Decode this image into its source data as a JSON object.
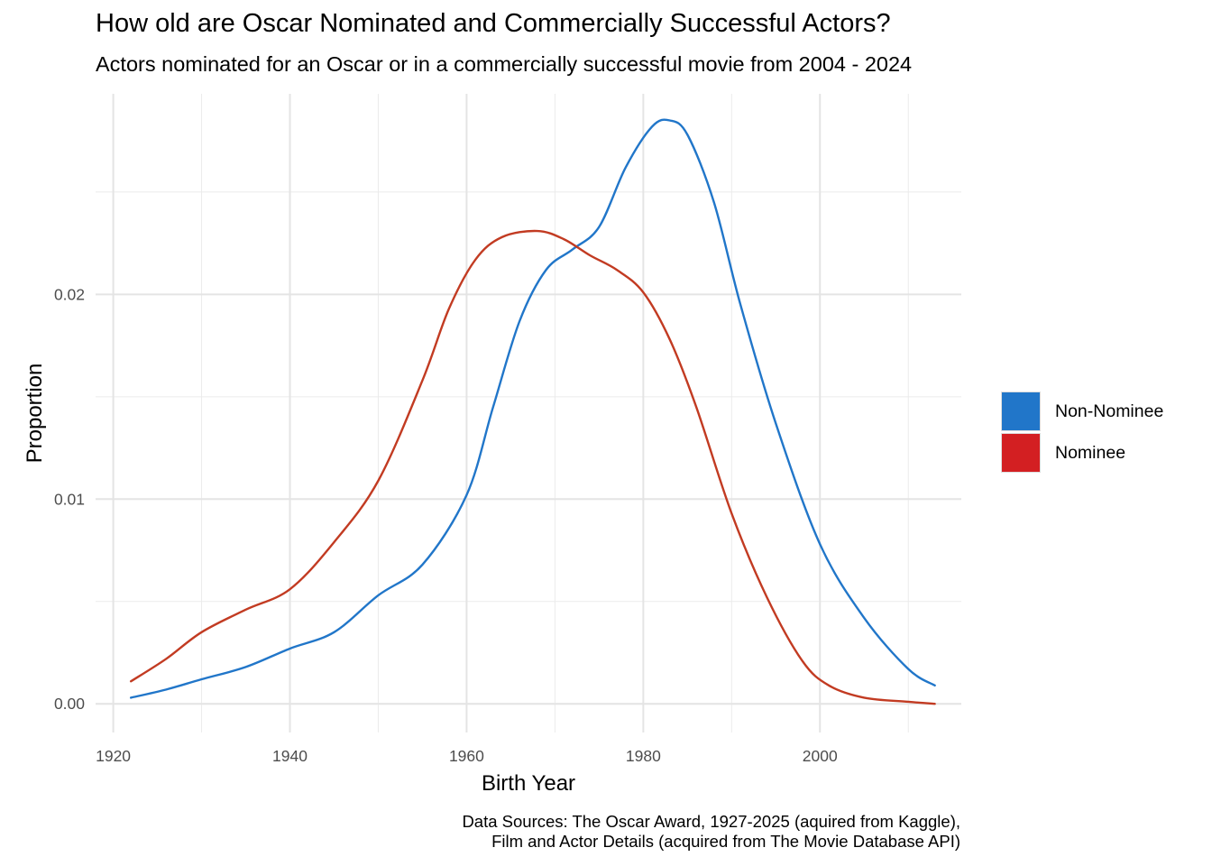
{
  "chart_data": {
    "type": "line",
    "title": "How old are Oscar Nominated and Commercially Successful Actors?",
    "subtitle": "Actors nominated for an Oscar or in a commercially successful movie from 2004 - 2024",
    "xlabel": "Birth Year",
    "ylabel": "Proportion",
    "caption_lines": [
      "Data Sources: The Oscar Award, 1927-2025 (aquired from Kaggle),",
      "Film and Actor Details (acquired from The Movie Database API)"
    ],
    "xlim": [
      1918,
      2016
    ],
    "ylim": [
      -0.0014,
      0.0298
    ],
    "x_ticks": [
      1920,
      1940,
      1960,
      1980,
      2000
    ],
    "x_tick_labels": [
      "1920",
      "1940",
      "1960",
      "1980",
      "2000"
    ],
    "y_ticks": [
      0.0,
      0.01,
      0.02
    ],
    "y_tick_labels": [
      "0.00",
      "0.01",
      "0.02"
    ],
    "grid": true,
    "legend_position": "right",
    "series": [
      {
        "name": "Non-Nominee",
        "color": "#2176c9",
        "x": [
          1922,
          1926,
          1930,
          1935,
          1940,
          1945,
          1950,
          1955,
          1960,
          1963,
          1966,
          1969,
          1972,
          1975,
          1978,
          1981,
          1983,
          1985,
          1988,
          1991,
          1995,
          2000,
          2005,
          2010,
          2013
        ],
        "y": [
          0.0003,
          0.0007,
          0.0012,
          0.0018,
          0.0027,
          0.0035,
          0.0053,
          0.0068,
          0.0102,
          0.0145,
          0.0187,
          0.0212,
          0.0222,
          0.0233,
          0.0262,
          0.0282,
          0.0285,
          0.0278,
          0.0245,
          0.0195,
          0.0137,
          0.0078,
          0.0042,
          0.0017,
          0.0009
        ]
      },
      {
        "name": "Nominee",
        "color": "#c23b22",
        "x": [
          1922,
          1926,
          1930,
          1935,
          1940,
          1945,
          1950,
          1955,
          1958,
          1961,
          1964,
          1968,
          1971,
          1974,
          1977,
          1980,
          1983,
          1986,
          1990,
          1994,
          1998,
          2001,
          2005,
          2010,
          2013
        ],
        "y": [
          0.0011,
          0.0022,
          0.0035,
          0.0046,
          0.0056,
          0.0079,
          0.0109,
          0.0158,
          0.0193,
          0.0217,
          0.0228,
          0.0231,
          0.0227,
          0.0219,
          0.0212,
          0.0201,
          0.0178,
          0.0145,
          0.0093,
          0.0052,
          0.0021,
          0.0009,
          0.0003,
          0.0001,
          0.0
        ]
      }
    ],
    "legend": [
      {
        "name": "Non-Nominee",
        "swatch_color": "#2176c9"
      },
      {
        "name": "Nominee",
        "swatch_color": "#d31f22"
      }
    ]
  }
}
